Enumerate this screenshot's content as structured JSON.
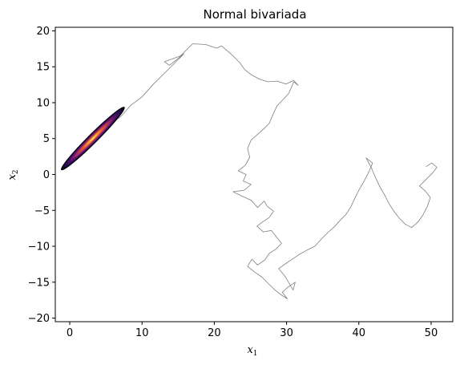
{
  "chart_data": {
    "type": "line",
    "title": "Normal bivariada",
    "xlabel": "x",
    "xlabel_subscript": "1",
    "ylabel": "x",
    "ylabel_subscript": "2",
    "xlim": [
      -2,
      53
    ],
    "ylim": [
      -20.5,
      20.5
    ],
    "xticks": [
      0,
      10,
      20,
      30,
      40,
      50
    ],
    "yticks": [
      -20,
      -15,
      -10,
      -5,
      0,
      5,
      10,
      15,
      20
    ],
    "grid": false,
    "legend": "none",
    "series": [
      {
        "kind": "random-walk trace",
        "color": "#7f7f7f",
        "path": [
          [
            0.3,
            1.8
          ],
          [
            1.5,
            3.0
          ],
          [
            2.8,
            4.6
          ],
          [
            4.3,
            6.2
          ],
          [
            5.8,
            7.3
          ],
          [
            7.0,
            8.0
          ],
          [
            8.4,
            9.6
          ],
          [
            10.0,
            10.8
          ],
          [
            11.6,
            12.6
          ],
          [
            13.2,
            14.2
          ],
          [
            14.6,
            15.6
          ],
          [
            15.8,
            16.8
          ],
          [
            13.8,
            15.2
          ],
          [
            13.1,
            15.7
          ],
          [
            15.3,
            16.5
          ],
          [
            17.0,
            18.2
          ],
          [
            18.8,
            18.1
          ],
          [
            20.3,
            17.6
          ],
          [
            21.0,
            17.9
          ],
          [
            22.3,
            16.8
          ],
          [
            23.5,
            15.6
          ],
          [
            24.2,
            14.6
          ],
          [
            25.1,
            13.9
          ],
          [
            26.2,
            13.3
          ],
          [
            27.4,
            12.9
          ],
          [
            28.7,
            13.0
          ],
          [
            29.9,
            12.6
          ],
          [
            31.0,
            13.1
          ],
          [
            31.6,
            12.4
          ],
          [
            31.0,
            12.9
          ],
          [
            30.3,
            11.3
          ],
          [
            29.5,
            10.4
          ],
          [
            28.7,
            9.6
          ],
          [
            28.1,
            8.3
          ],
          [
            27.6,
            7.1
          ],
          [
            26.9,
            6.4
          ],
          [
            26.0,
            5.6
          ],
          [
            25.1,
            4.8
          ],
          [
            24.6,
            3.6
          ],
          [
            24.9,
            2.4
          ],
          [
            24.3,
            1.3
          ],
          [
            23.3,
            0.5
          ],
          [
            24.4,
            0.0
          ],
          [
            24.0,
            -0.9
          ],
          [
            25.1,
            -1.4
          ],
          [
            24.1,
            -2.2
          ],
          [
            22.6,
            -2.4
          ],
          [
            23.8,
            -3.0
          ],
          [
            25.1,
            -3.6
          ],
          [
            26.0,
            -4.6
          ],
          [
            26.9,
            -3.7
          ],
          [
            27.3,
            -4.4
          ],
          [
            28.2,
            -5.1
          ],
          [
            27.6,
            -6.0
          ],
          [
            26.7,
            -6.6
          ],
          [
            25.9,
            -7.2
          ],
          [
            26.8,
            -8.0
          ],
          [
            27.9,
            -7.8
          ],
          [
            28.6,
            -8.7
          ],
          [
            29.3,
            -9.6
          ],
          [
            28.5,
            -10.4
          ],
          [
            27.6,
            -11.0
          ],
          [
            27.0,
            -11.9
          ],
          [
            26.0,
            -12.6
          ],
          [
            25.2,
            -11.8
          ],
          [
            24.6,
            -12.8
          ],
          [
            25.6,
            -13.6
          ],
          [
            26.6,
            -14.3
          ],
          [
            27.5,
            -15.2
          ],
          [
            28.4,
            -16.1
          ],
          [
            29.3,
            -16.8
          ],
          [
            30.1,
            -17.3
          ],
          [
            29.4,
            -16.4
          ],
          [
            30.3,
            -15.6
          ],
          [
            31.2,
            -15.0
          ],
          [
            30.9,
            -16.1
          ],
          [
            29.8,
            -14.2
          ],
          [
            28.9,
            -13.1
          ],
          [
            29.9,
            -12.4
          ],
          [
            30.8,
            -11.8
          ],
          [
            31.8,
            -11.1
          ],
          [
            32.9,
            -10.5
          ],
          [
            33.9,
            -10.0
          ],
          [
            34.8,
            -9.0
          ],
          [
            35.7,
            -8.1
          ],
          [
            36.6,
            -7.3
          ],
          [
            37.4,
            -6.4
          ],
          [
            38.2,
            -5.6
          ],
          [
            38.9,
            -4.5
          ],
          [
            39.5,
            -3.2
          ],
          [
            40.1,
            -2.0
          ],
          [
            40.8,
            -0.8
          ],
          [
            41.4,
            0.4
          ],
          [
            41.9,
            1.6
          ],
          [
            41.0,
            2.3
          ],
          [
            41.7,
            1.0
          ],
          [
            42.3,
            -0.4
          ],
          [
            42.9,
            -1.7
          ],
          [
            43.6,
            -2.9
          ],
          [
            44.2,
            -4.1
          ],
          [
            44.9,
            -5.2
          ],
          [
            45.6,
            -6.1
          ],
          [
            46.4,
            -6.9
          ],
          [
            47.3,
            -7.4
          ],
          [
            48.2,
            -6.6
          ],
          [
            48.9,
            -5.6
          ],
          [
            49.5,
            -4.4
          ],
          [
            49.9,
            -3.2
          ],
          [
            49.2,
            -2.3
          ],
          [
            48.4,
            -1.6
          ],
          [
            49.3,
            -0.7
          ],
          [
            50.2,
            0.2
          ],
          [
            50.8,
            1.0
          ],
          [
            50.1,
            1.6
          ],
          [
            49.3,
            1.1
          ]
        ]
      },
      {
        "kind": "density",
        "center": [
          3.2,
          5.0
        ],
        "sd": [
          1.9,
          1.9
        ],
        "corr": 0.98,
        "colormap": "inferno"
      }
    ]
  }
}
